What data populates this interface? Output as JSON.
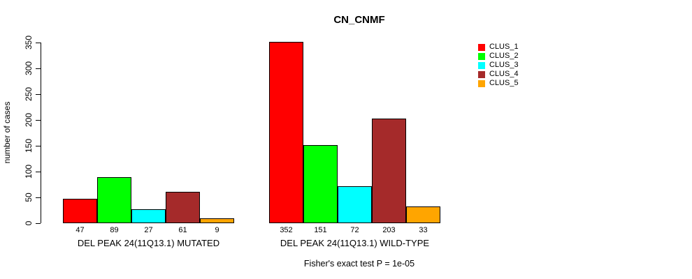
{
  "title": "CN_CNMF",
  "ylabel": "number of cases",
  "footer": "Fisher's exact test P = 1e-05",
  "chart_data": {
    "type": "bar",
    "title": "CN_CNMF",
    "xlabel": "",
    "ylabel": "number of cases",
    "ylim": [
      0,
      350
    ],
    "yticks": [
      0,
      50,
      100,
      150,
      200,
      250,
      300,
      350
    ],
    "grid": false,
    "legend_position": "top-right",
    "series": [
      "CLUS_1",
      "CLUS_2",
      "CLUS_3",
      "CLUS_4",
      "CLUS_5"
    ],
    "colors": [
      "#ff0000",
      "#00ff00",
      "#00ffff",
      "#a52a2a",
      "#ffa500"
    ],
    "groups": [
      {
        "label": "DEL PEAK 24(11Q13.1) MUTATED",
        "values": [
          47,
          89,
          27,
          61,
          9
        ]
      },
      {
        "label": "DEL PEAK 24(11Q13.1) WILD-TYPE",
        "values": [
          352,
          151,
          72,
          203,
          33
        ]
      }
    ],
    "annotation": "Fisher's exact test P = 1e-05"
  }
}
